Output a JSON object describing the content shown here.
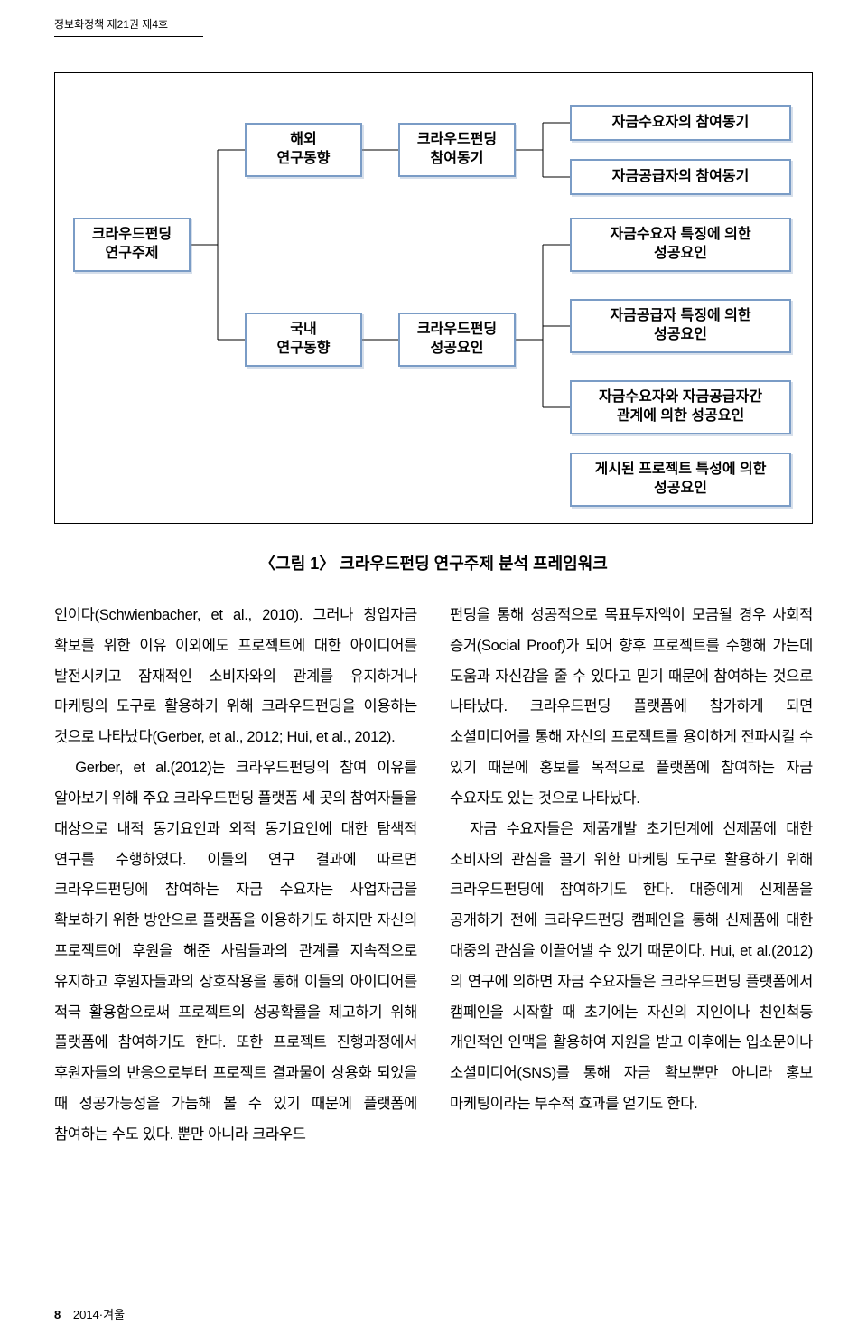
{
  "header": {
    "journal": "정보화정책 제21권 제4호"
  },
  "diagram": {
    "nodes": {
      "root": "크라우드펀딩\n연구주제",
      "overseas": "해외\n연구동향",
      "domestic": "국내\n연구동향",
      "motive": "크라우드펀딩\n참여동기",
      "success": "크라우드펀딩\n성공요인",
      "l1": "자금수요자의 참여동기",
      "l2": "자금공급자의 참여동기",
      "l3": "자금수요자 특징에 의한\n성공요인",
      "l4": "자금공급자 특징에 의한\n성공요인",
      "l5": "자금수요자와 자금공급자간\n관계에 의한 성공요인",
      "l6": "게시된 프로젝트 특성에 의한\n성공요인"
    },
    "caption": "〈그림 1〉 크라우드펀딩 연구주제 분석 프레임워크"
  },
  "body": {
    "col1": "인이다(Schwienbacher, et al., 2010). 그러나 창업자금 확보를 위한 이유 이외에도 프로젝트에 대한 아이디어를 발전시키고 잠재적인 소비자와의 관계를 유지하거나 마케팅의 도구로 활용하기 위해 크라우드펀딩을 이용하는 것으로 나타났다(Gerber, et al., 2012; Hui, et al., 2012).\n　Gerber, et al.(2012)는 크라우드펀딩의 참여 이유를 알아보기 위해 주요 크라우드펀딩 플랫폼 세 곳의 참여자들을 대상으로 내적 동기요인과 외적 동기요인에 대한 탐색적 연구를 수행하였다. 이들의 연구 결과에 따르면 크라우드펀딩에 참여하는 자금 수요자는 사업자금을 확보하기 위한 방안으로 플랫폼을 이용하기도 하지만 자신의 프로젝트에 후원을 해준 사람들과의 관계를 지속적으로 유지하고 후원자들과의 상호작용을 통해 이들의 아이디어를 적극 활용함으로써 프로젝트의 성공확률을 제고하기 위해 플랫폼에 참여하기도 한다. 또한 프로젝트 진행과정에서 후원자들의 반응으로부터 프로젝트 결과물이 상용화 되었을 때 성공가능성을 가늠해 볼 수 있기 때문에 플랫폼에 참여하는 수도 있다. 뿐만 아니라 크라우드",
    "col2": "펀딩을 통해 성공적으로 목표투자액이 모금될 경우 사회적 증거(Social Proof)가 되어 향후 프로젝트를 수행해 가는데 도움과 자신감을 줄 수 있다고 믿기 때문에 참여하는 것으로 나타났다. 크라우드펀딩 플랫폼에 참가하게 되면 소셜미디어를 통해 자신의 프로젝트를 용이하게 전파시킬 수 있기 때문에 홍보를 목적으로 플랫폼에 참여하는 자금 수요자도 있는 것으로 나타났다.\n　자금 수요자들은 제품개발 초기단계에 신제품에 대한 소비자의 관심을 끌기 위한 마케팅 도구로 활용하기 위해 크라우드펀딩에 참여하기도 한다. 대중에게 신제품을 공개하기 전에 크라우드펀딩 캠페인을 통해 신제품에 대한 대중의 관심을 이끌어낼 수 있기 때문이다. Hui, et al.(2012)의 연구에 의하면 자금 수요자들은 크라우드펀딩 플랫폼에서 캠페인을 시작할 때 초기에는 자신의 지인이나 친인척등 개인적인 인맥을 활용하여 지원을 받고 이후에는 입소문이나 소셜미디어(SNS)를 통해 자금 확보뿐만 아니라 홍보 마케팅이라는 부수적 효과를 얻기도 한다."
  },
  "footer": {
    "page": "8",
    "issue": "2014·겨울"
  }
}
